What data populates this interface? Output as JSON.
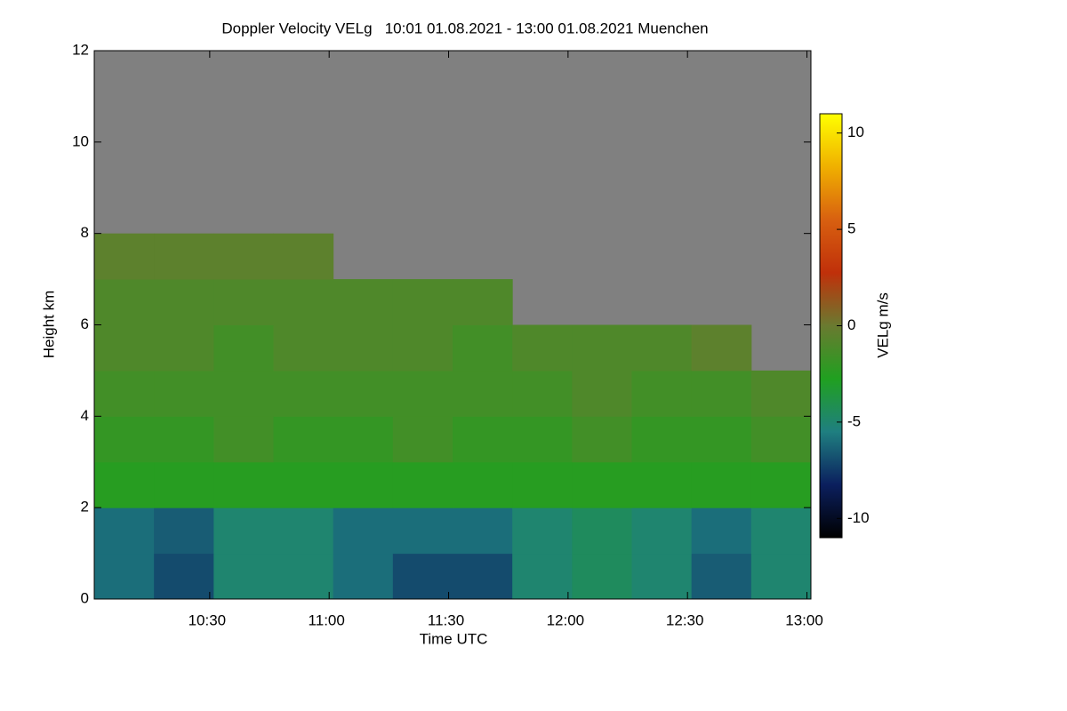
{
  "chart_data": {
    "type": "heatmap",
    "title": "Doppler Velocity VELg   10:01 01.08.2021 - 13:00 01.08.2021 Muenchen",
    "x_label": "Time UTC",
    "y_label": "Height km",
    "colorbar_label": "VELg m/s",
    "xlim": [
      601,
      781
    ],
    "xticks": [
      {
        "value": 630,
        "label": "10:30"
      },
      {
        "value": 660,
        "label": "11:00"
      },
      {
        "value": 690,
        "label": "11:30"
      },
      {
        "value": 720,
        "label": "12:00"
      },
      {
        "value": 750,
        "label": "12:30"
      },
      {
        "value": 780,
        "label": "13:00"
      }
    ],
    "ylim": [
      0,
      12
    ],
    "yticks": [
      0,
      2,
      4,
      6,
      8,
      10,
      12
    ],
    "zlim": [
      -11,
      11
    ],
    "zticks": [
      -10,
      -5,
      0,
      5,
      10
    ],
    "colormap": [
      "#000000",
      "#0b1f5e",
      "#1f7f80",
      "#20a020",
      "#6a7a30",
      "#c0300a",
      "#d86010",
      "#f0b000",
      "#ffff00"
    ],
    "nodata_color": "#808080",
    "xbins": [
      601,
      616,
      631,
      646,
      661,
      676,
      691,
      706,
      721,
      736,
      751,
      766,
      781
    ],
    "ybins": [
      0,
      1,
      2,
      3,
      4,
      5,
      6,
      7,
      8,
      9,
      10,
      11,
      12
    ],
    "z": [
      [
        -6,
        -7,
        -5,
        -5,
        -6,
        -7,
        -7,
        -5,
        -4.5,
        -5,
        -6.5,
        -5
      ],
      [
        -6,
        -6.5,
        -5,
        -5,
        -6,
        -6,
        -6,
        -5,
        -4.5,
        -5,
        -6,
        -5
      ],
      [
        -2.5,
        -2.5,
        -2.5,
        -2.5,
        -2.5,
        -2.5,
        -2.5,
        -2.5,
        -2.5,
        -2.5,
        -2.5,
        -2.5
      ],
      [
        -2,
        -2,
        -1.5,
        -2,
        -2,
        -1.5,
        -2,
        -2,
        -1.5,
        -2,
        -2,
        -1.5
      ],
      [
        -1.5,
        -1.5,
        -1.5,
        -1.5,
        -1.5,
        -1.5,
        -1.5,
        -1.5,
        -1,
        -1.5,
        -1.5,
        -1
      ],
      [
        -1,
        -1,
        -1.5,
        -1,
        -1,
        -1,
        -1.5,
        -1,
        -1,
        -1,
        -0.5,
        null
      ],
      [
        -1,
        -1,
        -1,
        -1,
        -1,
        -1,
        -1,
        null,
        null,
        null,
        null,
        null
      ],
      [
        -0.5,
        -0.5,
        -0.5,
        -0.5,
        null,
        null,
        null,
        null,
        null,
        null,
        null,
        null
      ],
      [
        null,
        null,
        null,
        null,
        null,
        null,
        null,
        null,
        null,
        null,
        null,
        null
      ],
      [
        null,
        null,
        null,
        null,
        null,
        null,
        null,
        null,
        null,
        null,
        null,
        null
      ],
      [
        null,
        null,
        null,
        null,
        null,
        null,
        null,
        null,
        null,
        null,
        null,
        null
      ],
      [
        null,
        null,
        null,
        null,
        null,
        null,
        null,
        null,
        null,
        null,
        null,
        null
      ]
    ]
  }
}
